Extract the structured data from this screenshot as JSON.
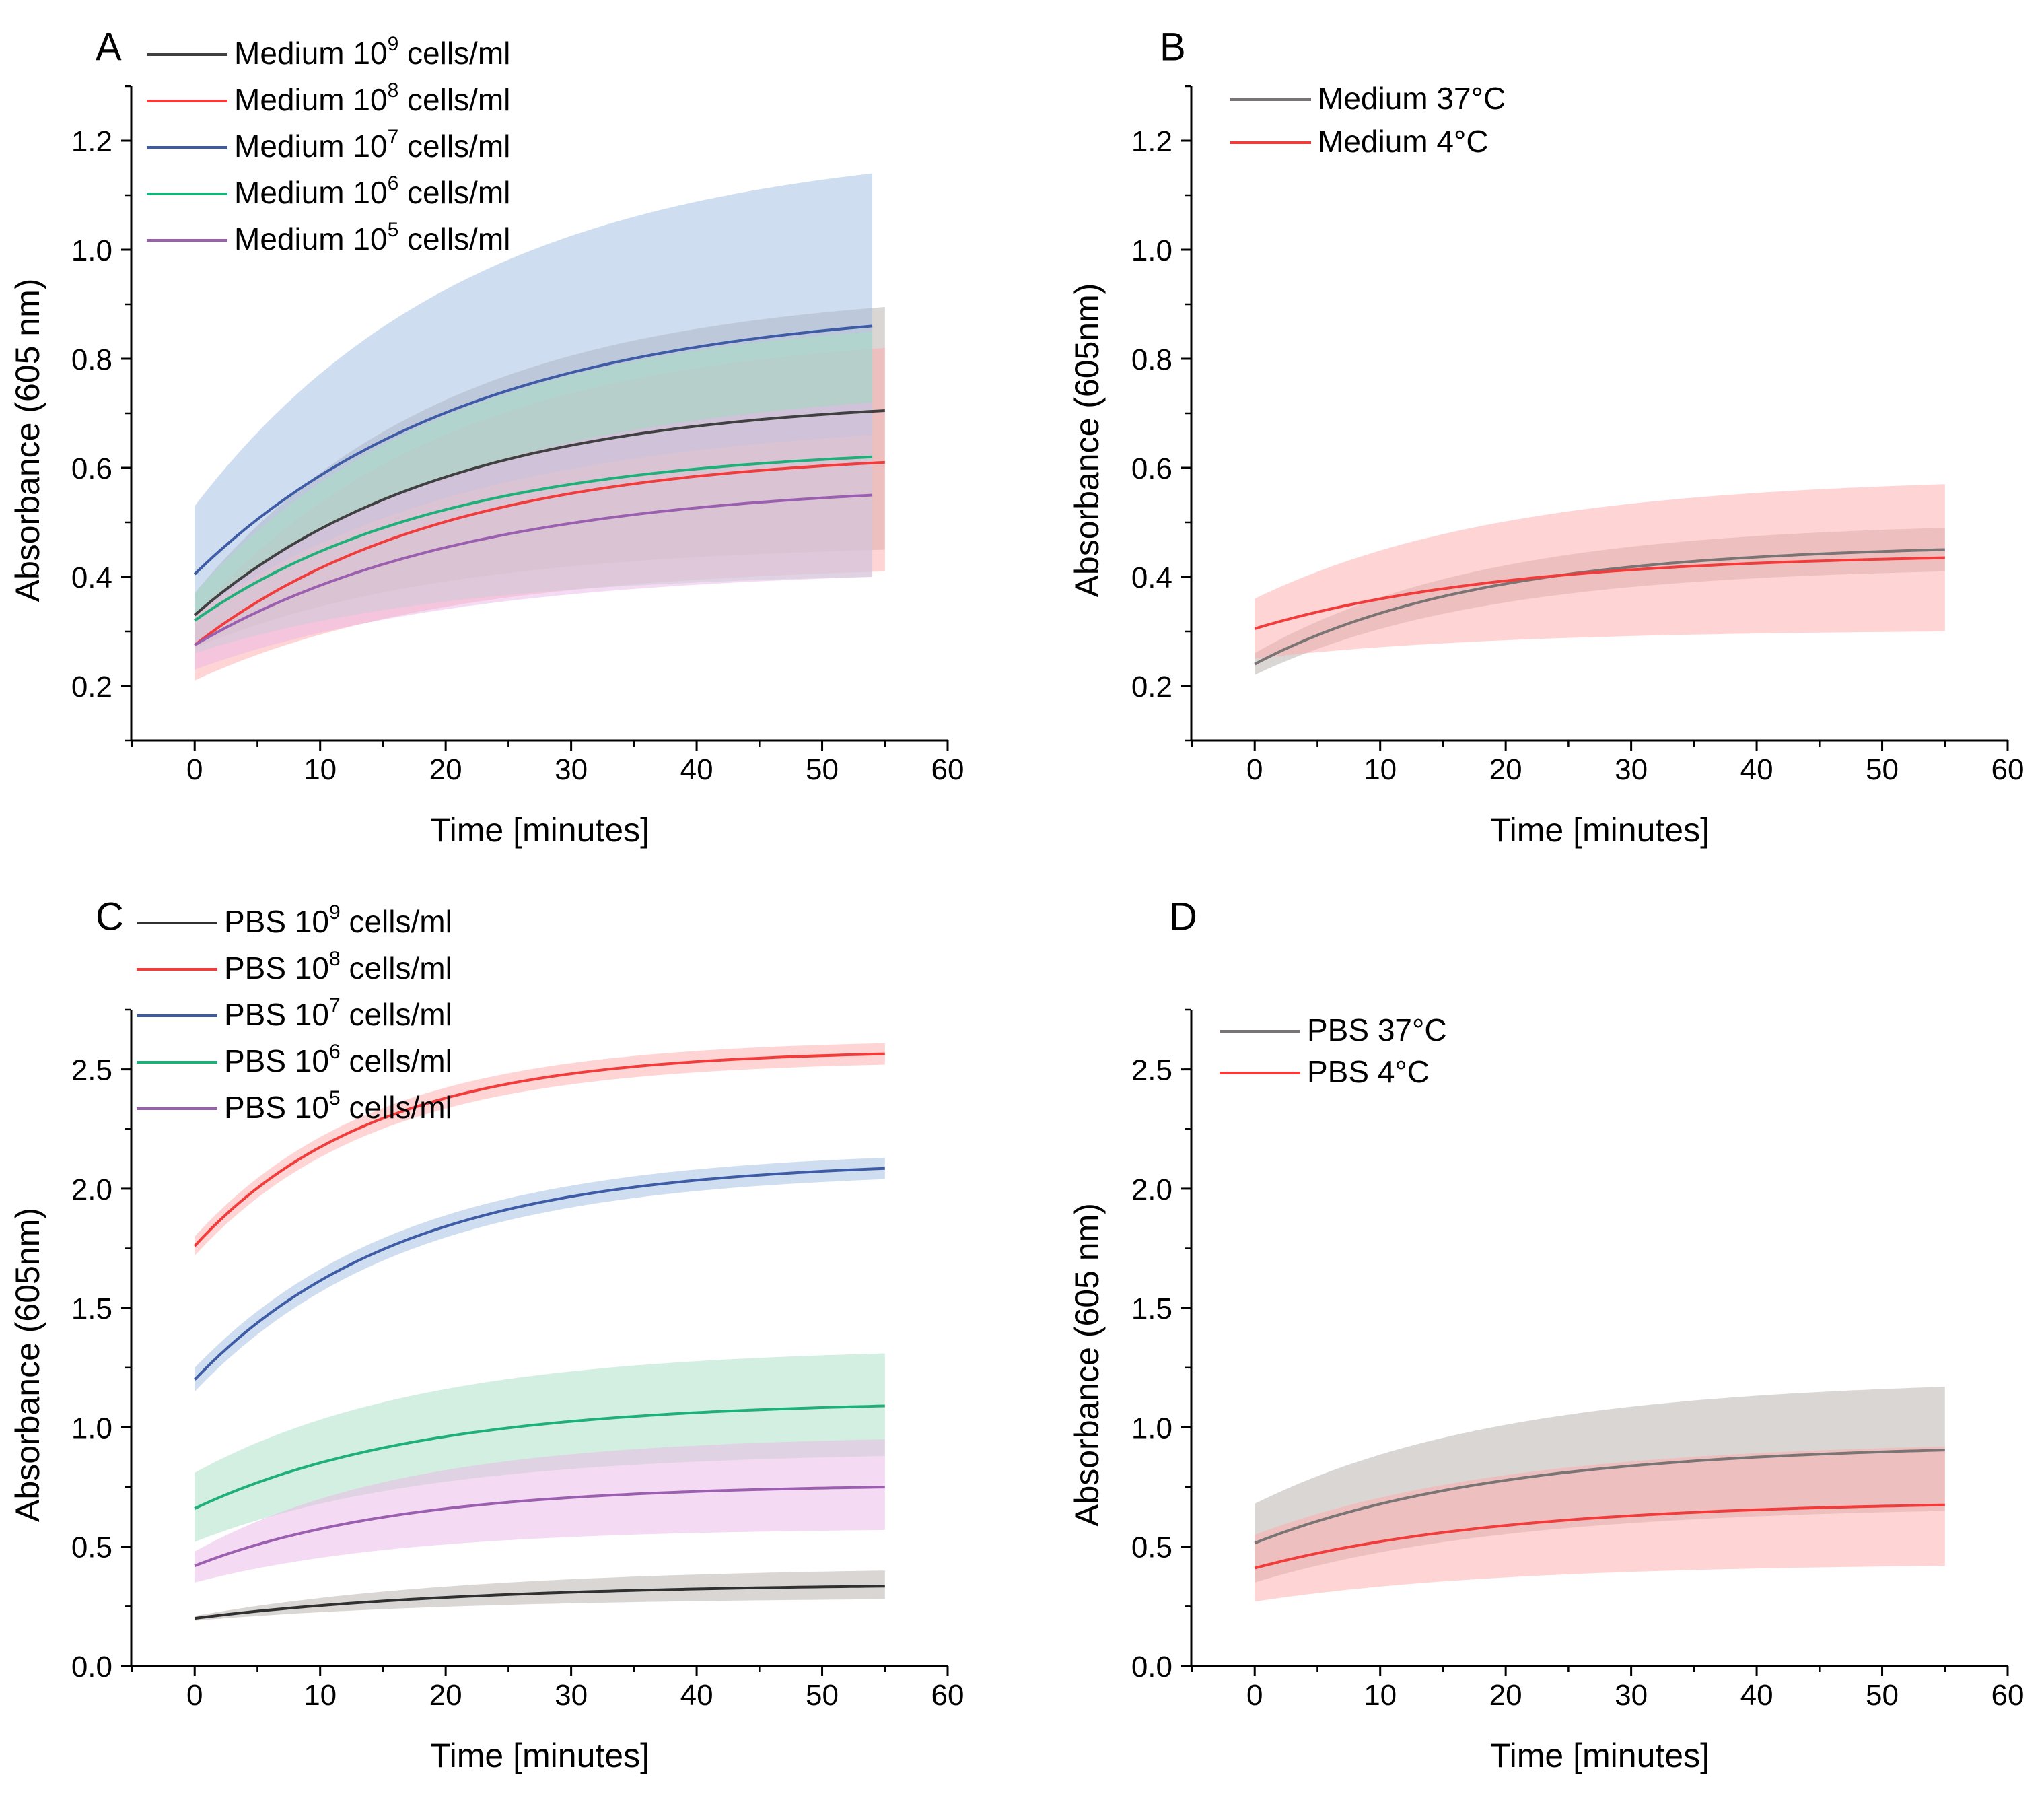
{
  "chart_data": [
    {
      "panel": "A",
      "type": "line",
      "xlabel": "Time [minutes]",
      "ylabel": "Absorbance (605 nm)",
      "xlim": [
        -5,
        60
      ],
      "ylim": [
        0.1,
        1.3
      ],
      "xticks": [
        "0",
        "10",
        "20",
        "30",
        "40",
        "50",
        "60"
      ],
      "yticks": [
        "0.2",
        "0.4",
        "0.6",
        "0.8",
        "1.0",
        "1.2"
      ],
      "legend": "top-left",
      "series": [
        {
          "name_prefix": "Medium 10",
          "exponent": "9",
          "name_suffix": " cells/ml",
          "color": "#404040",
          "band_color": "#b5ada9",
          "x_end": 55,
          "start": 0.33,
          "end": 0.705,
          "k": 0.05,
          "band_lo": [
            0.27,
            0.45
          ],
          "band_hi": [
            0.37,
            0.895
          ]
        },
        {
          "name_prefix": "Medium 10",
          "exponent": "8",
          "name_suffix": " cells/ml",
          "color": "#f23b3b",
          "band_color": "#ffaaaa",
          "x_end": 55,
          "start": 0.275,
          "end": 0.61,
          "k": 0.05,
          "band_lo": [
            0.21,
            0.41
          ],
          "band_hi": [
            0.33,
            0.82
          ]
        },
        {
          "name_prefix": "Medium 10",
          "exponent": "7",
          "name_suffix": " cells/ml",
          "color": "#3e5ba6",
          "band_color": "#9fbce2",
          "x_end": 54,
          "start": 0.405,
          "end": 0.86,
          "k": 0.045,
          "band_lo": [
            0.33,
            0.66
          ],
          "band_hi": [
            0.53,
            1.14
          ]
        },
        {
          "name_prefix": "Medium 10",
          "exponent": "6",
          "name_suffix": " cells/ml",
          "color": "#1fb07a",
          "band_color": "#a7dfc3",
          "x_end": 54,
          "start": 0.32,
          "end": 0.62,
          "k": 0.05,
          "band_lo": [
            0.26,
            0.4
          ],
          "band_hi": [
            0.37,
            0.85
          ]
        },
        {
          "name_prefix": "Medium 10",
          "exponent": "5",
          "name_suffix": " cells/ml",
          "color": "#9b5fb0",
          "band_color": "#eab6e6",
          "x_end": 54,
          "start": 0.275,
          "end": 0.55,
          "k": 0.045,
          "band_lo": [
            0.23,
            0.4
          ],
          "band_hi": [
            0.33,
            0.72
          ]
        }
      ]
    },
    {
      "panel": "B",
      "type": "line",
      "xlabel": "Time [minutes]",
      "ylabel": "Absorbance (605nm)",
      "xlim": [
        -5,
        60
      ],
      "ylim": [
        0.1,
        1.3
      ],
      "xticks": [
        "0",
        "10",
        "20",
        "30",
        "40",
        "50",
        "60"
      ],
      "yticks": [
        "0.2",
        "0.4",
        "0.6",
        "0.8",
        "1.0",
        "1.2"
      ],
      "legend": "top-left",
      "series": [
        {
          "name": "Medium 37°C",
          "color": "#7a7474",
          "band_color": "#b5ada9",
          "x_end": 55,
          "start": 0.24,
          "end": 0.45,
          "k": 0.055,
          "band_lo": [
            0.22,
            0.41
          ],
          "band_hi": [
            0.26,
            0.49
          ]
        },
        {
          "name": "Medium 4°C",
          "color": "#f23b3b",
          "band_color": "#ffaaaa",
          "x_end": 55,
          "start": 0.305,
          "end": 0.435,
          "k": 0.05,
          "band_lo": [
            0.25,
            0.3
          ],
          "band_hi": [
            0.36,
            0.57
          ]
        }
      ]
    },
    {
      "panel": "C",
      "type": "line",
      "xlabel": "Time [minutes]",
      "ylabel": "Absorbance (605nm)",
      "xlim": [
        -5,
        60
      ],
      "ylim": [
        0,
        2.75
      ],
      "xticks": [
        "0",
        "10",
        "20",
        "30",
        "40",
        "50",
        "60"
      ],
      "yticks": [
        "0.0",
        "0.5",
        "1.0",
        "1.5",
        "2.0",
        "2.5"
      ],
      "legend": "top-left",
      "series": [
        {
          "name_prefix": "PBS 10",
          "exponent": "9",
          "name_suffix": " cells/ml",
          "color": "#303030",
          "band_color": "#b5ada9",
          "x_end": 55,
          "start": 0.2,
          "end": 0.335,
          "k": 0.045,
          "band_lo": [
            0.19,
            0.28
          ],
          "band_hi": [
            0.21,
            0.4
          ]
        },
        {
          "name_prefix": "PBS 10",
          "exponent": "8",
          "name_suffix": " cells/ml",
          "color": "#f23b3b",
          "band_color": "#ffaaaa",
          "x_end": 55,
          "start": 1.76,
          "end": 2.565,
          "k": 0.07,
          "band_lo": [
            1.72,
            2.52
          ],
          "band_hi": [
            1.8,
            2.61
          ]
        },
        {
          "name_prefix": "PBS 10",
          "exponent": "7",
          "name_suffix": " cells/ml",
          "color": "#3e5ba6",
          "band_color": "#9fbce2",
          "x_end": 55,
          "start": 1.2,
          "end": 2.085,
          "k": 0.06,
          "band_lo": [
            1.15,
            2.04
          ],
          "band_hi": [
            1.25,
            2.13
          ]
        },
        {
          "name_prefix": "PBS 10",
          "exponent": "6",
          "name_suffix": " cells/ml",
          "color": "#1fb07a",
          "band_color": "#a7dfc3",
          "x_end": 55,
          "start": 0.66,
          "end": 1.09,
          "k": 0.055,
          "band_lo": [
            0.52,
            0.88
          ],
          "band_hi": [
            0.81,
            1.31
          ]
        },
        {
          "name_prefix": "PBS 10",
          "exponent": "5",
          "name_suffix": " cells/ml",
          "color": "#9b5fb0",
          "band_color": "#eab6e6",
          "x_end": 55,
          "start": 0.42,
          "end": 0.75,
          "k": 0.06,
          "band_lo": [
            0.35,
            0.57
          ],
          "band_hi": [
            0.48,
            0.95
          ]
        }
      ]
    },
    {
      "panel": "D",
      "type": "line",
      "xlabel": "Time [minutes]",
      "ylabel": "Absorbance (605 nm)",
      "xlim": [
        -5,
        60
      ],
      "ylim": [
        0,
        2.75
      ],
      "xticks": [
        "0",
        "10",
        "20",
        "30",
        "40",
        "50",
        "60"
      ],
      "yticks": [
        "0.0",
        "0.5",
        "1.0",
        "1.5",
        "2.0",
        "2.5"
      ],
      "legend": "top-left",
      "series": [
        {
          "name": "PBS 37°C",
          "color": "#7a7474",
          "band_color": "#b5ada9",
          "x_end": 55,
          "start": 0.515,
          "end": 0.905,
          "k": 0.05,
          "band_lo": [
            0.35,
            0.65
          ],
          "band_hi": [
            0.68,
            1.17
          ]
        },
        {
          "name": "PBS 4°C",
          "color": "#f23b3b",
          "band_color": "#ffaaaa",
          "x_end": 55,
          "start": 0.41,
          "end": 0.675,
          "k": 0.05,
          "band_lo": [
            0.27,
            0.42
          ],
          "band_hi": [
            0.55,
            0.92
          ]
        }
      ]
    }
  ]
}
